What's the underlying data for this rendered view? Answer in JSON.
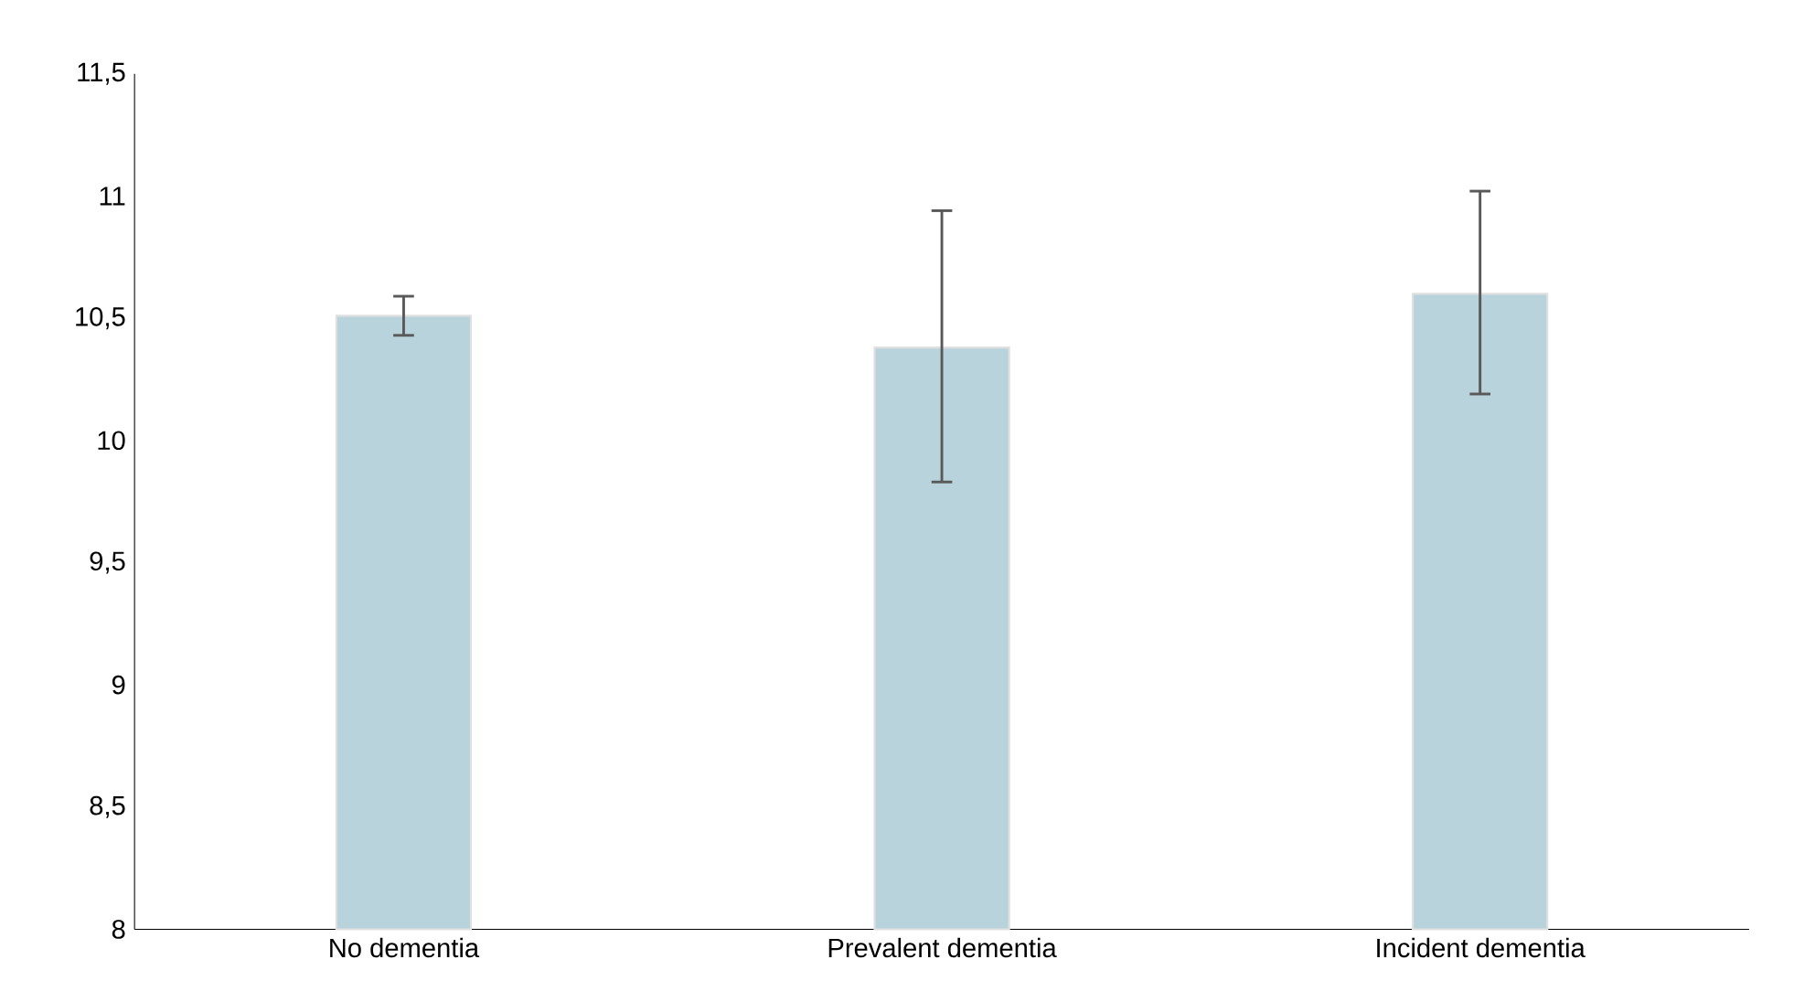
{
  "chart_data": {
    "type": "bar",
    "categories": [
      "No dementia",
      "Prevalent dementia",
      "Incident dementia"
    ],
    "values": [
      10.51,
      10.38,
      10.6
    ],
    "errors": [
      [
        10.43,
        10.59
      ],
      [
        9.83,
        10.94
      ],
      [
        10.19,
        11.02
      ]
    ],
    "color": "#b9d3dc",
    "ylim": [
      8,
      11.5
    ],
    "yticks": [
      8,
      {
        "value": 8.5,
        "label": "8,5"
      },
      9,
      {
        "value": 9.5,
        "label": "9,5"
      },
      10,
      {
        "value": 10.5,
        "label": "10,5"
      },
      11,
      {
        "value": 11.5,
        "label": "11,5"
      }
    ],
    "grid": false
  }
}
